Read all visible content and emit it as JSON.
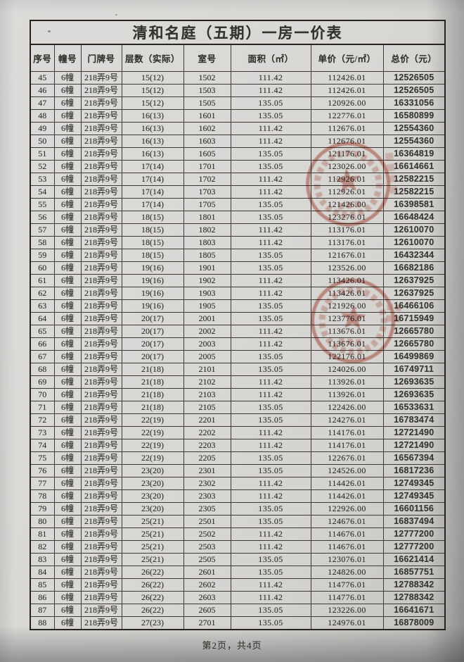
{
  "document": {
    "title": "清和名庭（五期）一房一价表",
    "footer": "第2页，共4页"
  },
  "table": {
    "columns": [
      "序号",
      "幢号",
      "门牌号",
      "层数（实际）",
      "室号",
      "面积（㎡）",
      "单价（元/㎡）",
      "总价（元）"
    ],
    "rows": [
      [
        "45",
        "6幢",
        "218弄9号",
        "15(12)",
        "1502",
        "111.42",
        "112426.01",
        "12526505"
      ],
      [
        "46",
        "6幢",
        "218弄9号",
        "15(12)",
        "1503",
        "111.42",
        "112426.01",
        "12526505"
      ],
      [
        "47",
        "6幢",
        "218弄9号",
        "15(12)",
        "1505",
        "135.05",
        "120926.00",
        "16331056"
      ],
      [
        "48",
        "6幢",
        "218弄9号",
        "16(13)",
        "1601",
        "135.05",
        "122776.01",
        "16580899"
      ],
      [
        "49",
        "6幢",
        "218弄9号",
        "16(13)",
        "1602",
        "111.42",
        "112676.01",
        "12554360"
      ],
      [
        "50",
        "6幢",
        "218弄9号",
        "16(13)",
        "1603",
        "111.42",
        "112676.01",
        "12554360"
      ],
      [
        "51",
        "6幢",
        "218弄9号",
        "16(13)",
        "1605",
        "135.05",
        "121176.01",
        "16364819"
      ],
      [
        "52",
        "6幢",
        "218弄9号",
        "17(14)",
        "1701",
        "135.05",
        "123026.00",
        "16614661"
      ],
      [
        "53",
        "6幢",
        "218弄9号",
        "17(14)",
        "1702",
        "111.42",
        "112926.01",
        "12582215"
      ],
      [
        "54",
        "6幢",
        "218弄9号",
        "17(14)",
        "1703",
        "111.42",
        "112926.01",
        "12582215"
      ],
      [
        "55",
        "6幢",
        "218弄9号",
        "17(14)",
        "1705",
        "135.05",
        "121426.00",
        "16398581"
      ],
      [
        "56",
        "6幢",
        "218弄9号",
        "18(15)",
        "1801",
        "135.05",
        "123276.01",
        "16648424"
      ],
      [
        "57",
        "6幢",
        "218弄9号",
        "18(15)",
        "1802",
        "111.42",
        "113176.01",
        "12610070"
      ],
      [
        "58",
        "6幢",
        "218弄9号",
        "18(15)",
        "1803",
        "111.42",
        "113176.01",
        "12610070"
      ],
      [
        "59",
        "6幢",
        "218弄9号",
        "18(15)",
        "1805",
        "135.05",
        "121676.01",
        "16432344"
      ],
      [
        "60",
        "6幢",
        "218弄9号",
        "19(16)",
        "1901",
        "135.05",
        "123526.00",
        "16682186"
      ],
      [
        "61",
        "6幢",
        "218弄9号",
        "19(16)",
        "1902",
        "111.42",
        "113426.01",
        "12637925"
      ],
      [
        "62",
        "6幢",
        "218弄9号",
        "19(16)",
        "1903",
        "111.42",
        "113426.01",
        "12637925"
      ],
      [
        "63",
        "6幢",
        "218弄9号",
        "19(16)",
        "1905",
        "135.05",
        "121926.00",
        "16466106"
      ],
      [
        "64",
        "6幢",
        "218弄9号",
        "20(17)",
        "2001",
        "135.05",
        "123776.01",
        "16715949"
      ],
      [
        "65",
        "6幢",
        "218弄9号",
        "20(17)",
        "2002",
        "111.42",
        "113676.01",
        "12665780"
      ],
      [
        "66",
        "6幢",
        "218弄9号",
        "20(17)",
        "2003",
        "111.42",
        "113676.01",
        "12665780"
      ],
      [
        "67",
        "6幢",
        "218弄9号",
        "20(17)",
        "2005",
        "135.05",
        "122176.01",
        "16499869"
      ],
      [
        "68",
        "6幢",
        "218弄9号",
        "21(18)",
        "2101",
        "135.05",
        "124026.00",
        "16749711"
      ],
      [
        "69",
        "6幢",
        "218弄9号",
        "21(18)",
        "2102",
        "111.42",
        "113926.01",
        "12693635"
      ],
      [
        "70",
        "6幢",
        "218弄9号",
        "21(18)",
        "2103",
        "111.42",
        "113926.01",
        "12693635"
      ],
      [
        "71",
        "6幢",
        "218弄9号",
        "21(18)",
        "2105",
        "135.05",
        "122426.00",
        "16533631"
      ],
      [
        "72",
        "6幢",
        "218弄9号",
        "22(19)",
        "2201",
        "135.05",
        "124276.01",
        "16783474"
      ],
      [
        "73",
        "6幢",
        "218弄9号",
        "22(19)",
        "2202",
        "111.42",
        "114176.01",
        "12721490"
      ],
      [
        "74",
        "6幢",
        "218弄9号",
        "22(19)",
        "2203",
        "111.42",
        "114176.01",
        "12721490"
      ],
      [
        "75",
        "6幢",
        "218弄9号",
        "22(19)",
        "2205",
        "135.05",
        "122676.01",
        "16567394"
      ],
      [
        "76",
        "6幢",
        "218弄9号",
        "23(20)",
        "2301",
        "135.05",
        "124526.00",
        "16817236"
      ],
      [
        "77",
        "6幢",
        "218弄9号",
        "23(20)",
        "2302",
        "111.42",
        "114426.01",
        "12749345"
      ],
      [
        "78",
        "6幢",
        "218弄9号",
        "23(20)",
        "2303",
        "111.42",
        "114426.01",
        "12749345"
      ],
      [
        "79",
        "6幢",
        "218弄9号",
        "23(20)",
        "2305",
        "135.05",
        "122926.00",
        "16601156"
      ],
      [
        "80",
        "6幢",
        "218弄9号",
        "25(21)",
        "2501",
        "135.05",
        "124676.01",
        "16837494"
      ],
      [
        "81",
        "6幢",
        "218弄9号",
        "25(21)",
        "2502",
        "111.42",
        "114676.01",
        "12777200"
      ],
      [
        "82",
        "6幢",
        "218弄9号",
        "25(21)",
        "2503",
        "111.42",
        "114676.01",
        "12777200"
      ],
      [
        "83",
        "6幢",
        "218弄9号",
        "25(21)",
        "2505",
        "135.05",
        "123076.01",
        "16621414"
      ],
      [
        "84",
        "6幢",
        "218弄9号",
        "26(22)",
        "2601",
        "135.05",
        "124826.00",
        "16857751"
      ],
      [
        "85",
        "6幢",
        "218弄9号",
        "26(22)",
        "2602",
        "111.42",
        "114776.01",
        "12788342"
      ],
      [
        "86",
        "6幢",
        "218弄9号",
        "26(22)",
        "2603",
        "111.42",
        "114776.01",
        "12788342"
      ],
      [
        "87",
        "6幢",
        "218弄9号",
        "26(22)",
        "2605",
        "135.05",
        "123226.00",
        "16641671"
      ],
      [
        "88",
        "6幢",
        "218弄9号",
        "27(23)",
        "2701",
        "135.05",
        "124976.01",
        "16878009"
      ]
    ]
  },
  "stamps": {
    "color": "#b8402c",
    "items": [
      {
        "name": "red-circular-stamp-upper"
      },
      {
        "name": "red-circular-stamp-lower"
      }
    ]
  }
}
